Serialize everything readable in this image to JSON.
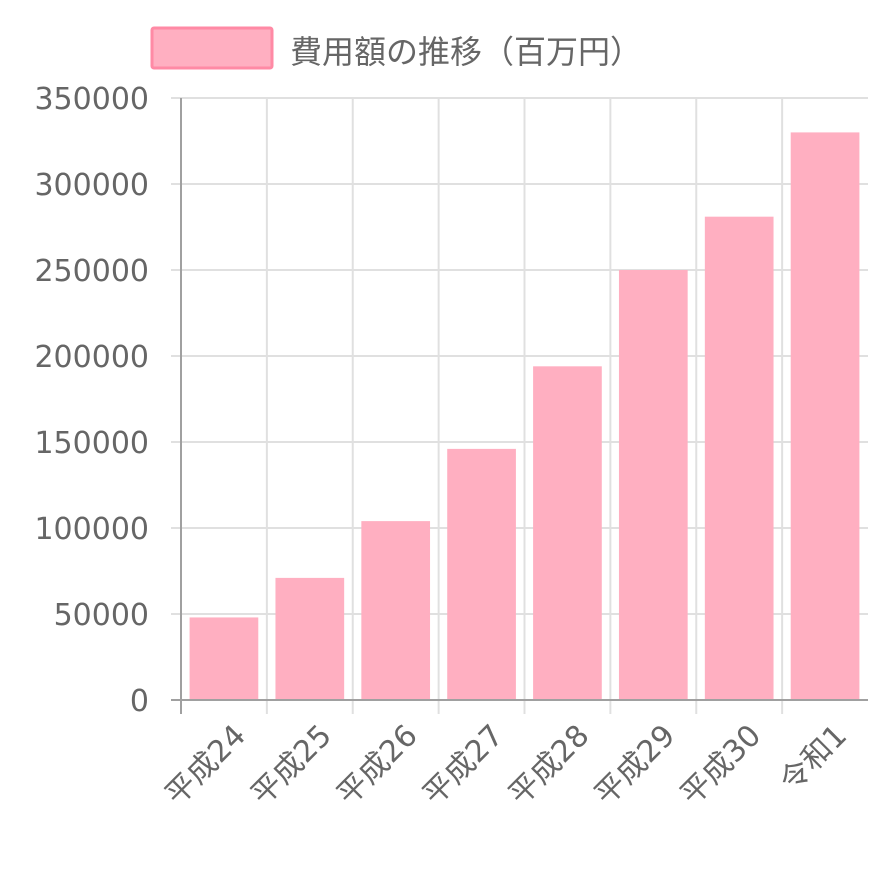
{
  "chart_data": {
    "type": "bar",
    "categories": [
      "平成24",
      "平成25",
      "平成26",
      "平成27",
      "平成28",
      "平成29",
      "平成30",
      "令和1"
    ],
    "series": [
      {
        "name": "費用額の推移（百万円）",
        "values": [
          48000,
          71000,
          104000,
          146000,
          194000,
          250000,
          281000,
          330000
        ]
      }
    ],
    "ylim": [
      0,
      350000
    ],
    "yticks": [
      "350000",
      "300000",
      "250000",
      "200000",
      "150000",
      "100000",
      "50000",
      "0"
    ],
    "grid": true,
    "legend_position": "top",
    "bar_color": "#ffafc1",
    "legend_fill": "#ffafc1",
    "legend_border": "#ff8aa5",
    "grid_color": "#e0e0e0",
    "axis_color": "#a0a0a0",
    "text_color": "#666666"
  }
}
